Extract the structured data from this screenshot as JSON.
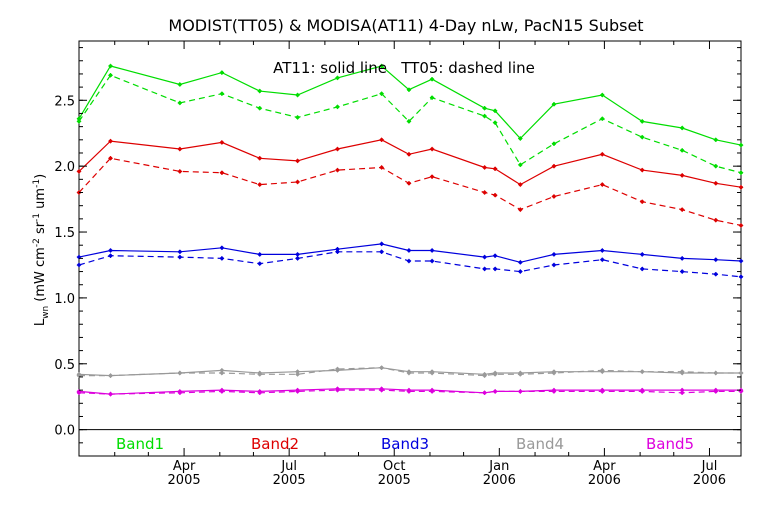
{
  "chart_data": {
    "type": "line",
    "title": "MODIST(TT05) & MODISA(AT11) 4-Day nLw, PacN15 Subset",
    "annotation": "AT11: solid line   TT05: dashed line",
    "ylabel": "L_wn (mW cm^-2 sr^-1 um^-1)",
    "ylabel_main": "L",
    "ylabel_sub": "wn",
    "ylabel_rest": " (mW cm",
    "ylabel_sup1": "-2",
    "ylabel_mid1": " sr",
    "ylabel_sup2": "-1",
    "ylabel_mid2": " um",
    "ylabel_sup3": "-1",
    "ylabel_end": ")",
    "ylim": [
      -0.2,
      2.95
    ],
    "xlim": [
      0,
      31.5
    ],
    "grid": false,
    "y_ticks": [
      {
        "v": 0.0,
        "label": "0.0"
      },
      {
        "v": 0.5,
        "label": "0.5"
      },
      {
        "v": 1.0,
        "label": "1.0"
      },
      {
        "v": 1.5,
        "label": "1.5"
      },
      {
        "v": 2.0,
        "label": "2.0"
      },
      {
        "v": 2.5,
        "label": "2.5"
      }
    ],
    "x_ticks": [
      {
        "x": 5.0,
        "month": "Apr",
        "year": "2005"
      },
      {
        "x": 10.0,
        "month": "Jul",
        "year": "2005"
      },
      {
        "x": 15.0,
        "month": "Oct",
        "year": "2005"
      },
      {
        "x": 20.0,
        "month": "Jan",
        "year": "2006"
      },
      {
        "x": 25.0,
        "month": "Apr",
        "year": "2006"
      },
      {
        "x": 30.0,
        "month": "Jul",
        "year": "2006"
      }
    ],
    "x_minor_ticks": [
      0,
      1.7,
      3.3,
      6.7,
      8.3,
      11.7,
      13.3,
      16.7,
      18.3,
      21.7,
      23.3,
      26.7,
      28.3
    ],
    "x": [
      0,
      1.5,
      4.8,
      6.8,
      8.6,
      10.4,
      12.3,
      14.4,
      15.7,
      16.8,
      19.3,
      19.8,
      21.0,
      22.6,
      24.9,
      26.8,
      28.7,
      30.3,
      31.5
    ],
    "legend": [
      {
        "label": "Band1",
        "color": "#00dd00"
      },
      {
        "label": "Band2",
        "color": "#dd0000"
      },
      {
        "label": "Band3",
        "color": "#0000dd"
      },
      {
        "label": "Band4",
        "color": "#999999"
      },
      {
        "label": "Band5",
        "color": "#dd00dd"
      }
    ],
    "series": [
      {
        "band": "Band1",
        "sensor": "AT11",
        "style": "solid",
        "color": "#00dd00",
        "values": [
          2.36,
          2.76,
          2.62,
          2.71,
          2.57,
          2.54,
          2.67,
          2.76,
          2.58,
          2.66,
          2.44,
          2.42,
          2.21,
          2.47,
          2.54,
          2.34,
          2.29,
          2.2,
          2.16
        ]
      },
      {
        "band": "Band1",
        "sensor": "TT05",
        "style": "dashed",
        "color": "#00dd00",
        "values": [
          2.34,
          2.69,
          2.48,
          2.55,
          2.44,
          2.37,
          2.45,
          2.55,
          2.34,
          2.52,
          2.38,
          2.33,
          2.01,
          2.17,
          2.36,
          2.22,
          2.12,
          2.0,
          1.95
        ]
      },
      {
        "band": "Band2",
        "sensor": "AT11",
        "style": "solid",
        "color": "#dd0000",
        "values": [
          1.96,
          2.19,
          2.13,
          2.18,
          2.06,
          2.04,
          2.13,
          2.2,
          2.09,
          2.13,
          1.99,
          1.98,
          1.86,
          2.0,
          2.09,
          1.97,
          1.93,
          1.87,
          1.84
        ]
      },
      {
        "band": "Band2",
        "sensor": "TT05",
        "style": "dashed",
        "color": "#dd0000",
        "values": [
          1.8,
          2.06,
          1.96,
          1.95,
          1.86,
          1.88,
          1.97,
          1.99,
          1.87,
          1.92,
          1.8,
          1.78,
          1.67,
          1.77,
          1.86,
          1.73,
          1.67,
          1.59,
          1.55
        ]
      },
      {
        "band": "Band3",
        "sensor": "AT11",
        "style": "solid",
        "color": "#0000dd",
        "values": [
          1.31,
          1.36,
          1.35,
          1.38,
          1.33,
          1.33,
          1.37,
          1.41,
          1.36,
          1.36,
          1.31,
          1.32,
          1.27,
          1.33,
          1.36,
          1.33,
          1.3,
          1.29,
          1.28
        ]
      },
      {
        "band": "Band3",
        "sensor": "TT05",
        "style": "dashed",
        "color": "#0000dd",
        "values": [
          1.25,
          1.32,
          1.31,
          1.3,
          1.26,
          1.3,
          1.35,
          1.35,
          1.28,
          1.28,
          1.22,
          1.22,
          1.2,
          1.25,
          1.29,
          1.22,
          1.2,
          1.18,
          1.16
        ]
      },
      {
        "band": "Band4",
        "sensor": "AT11",
        "style": "solid",
        "color": "#999999",
        "values": [
          0.42,
          0.41,
          0.43,
          0.45,
          0.43,
          0.44,
          0.45,
          0.47,
          0.44,
          0.44,
          0.42,
          0.43,
          0.43,
          0.44,
          0.44,
          0.44,
          0.43,
          0.43,
          0.43
        ]
      },
      {
        "band": "Band4",
        "sensor": "TT05",
        "style": "dashed",
        "color": "#999999",
        "values": [
          0.41,
          0.41,
          0.43,
          0.43,
          0.42,
          0.42,
          0.46,
          0.47,
          0.43,
          0.43,
          0.41,
          0.42,
          0.42,
          0.43,
          0.45,
          0.44,
          0.44,
          0.43,
          0.43
        ]
      },
      {
        "band": "Band5",
        "sensor": "AT11",
        "style": "solid",
        "color": "#dd00dd",
        "values": [
          0.29,
          0.27,
          0.29,
          0.3,
          0.29,
          0.3,
          0.31,
          0.31,
          0.3,
          0.3,
          0.28,
          0.29,
          0.29,
          0.3,
          0.3,
          0.3,
          0.3,
          0.3,
          0.3
        ]
      },
      {
        "band": "Band5",
        "sensor": "TT05",
        "style": "dashed",
        "color": "#dd00dd",
        "values": [
          0.28,
          0.27,
          0.28,
          0.29,
          0.28,
          0.29,
          0.3,
          0.3,
          0.29,
          0.29,
          0.28,
          0.29,
          0.29,
          0.29,
          0.29,
          0.29,
          0.28,
          0.29,
          0.29
        ]
      }
    ]
  }
}
